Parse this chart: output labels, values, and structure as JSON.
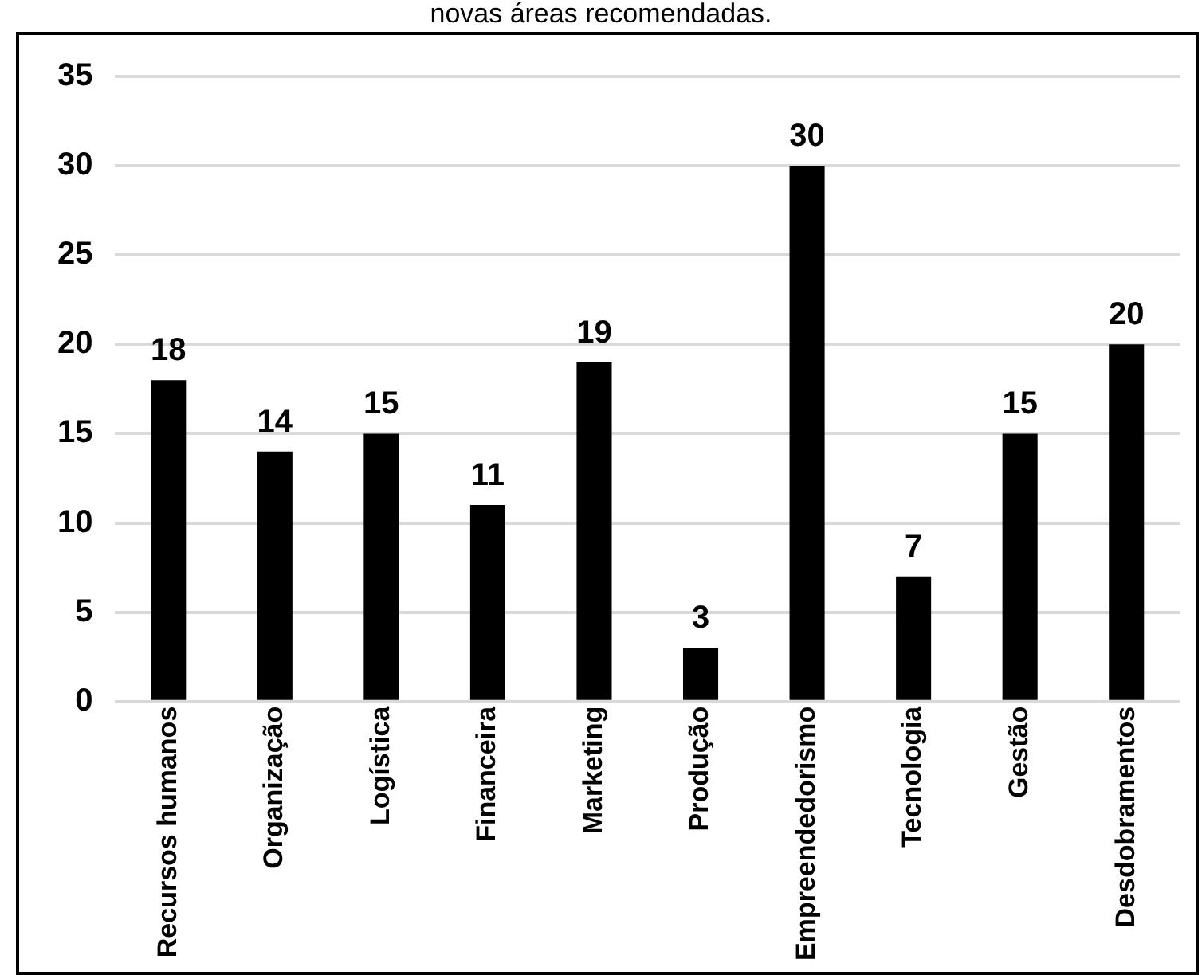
{
  "chart_data": {
    "type": "bar",
    "title": "novas áreas recomendadas.",
    "categories": [
      "Recursos humanos",
      "Organização",
      "Logística",
      "Financeira",
      "Marketing",
      "Produção",
      "Empreendedorismo",
      "Tecnologia",
      "Gestão",
      "Desdobramentos"
    ],
    "values": [
      18,
      14,
      15,
      11,
      19,
      3,
      30,
      7,
      15,
      20
    ],
    "color": "#000000",
    "ylim": [
      0,
      35
    ],
    "yticks": [
      0,
      5,
      10,
      15,
      20,
      25,
      30,
      35
    ],
    "grid": "y",
    "data_labels": true,
    "legend": false
  }
}
